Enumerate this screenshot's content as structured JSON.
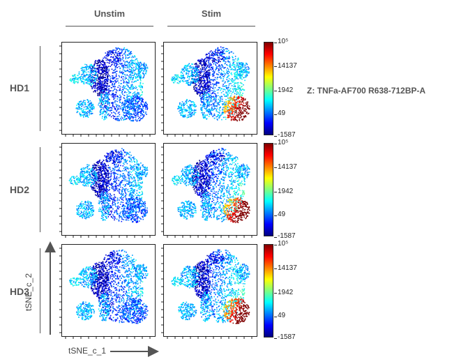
{
  "columns": [
    {
      "label": "Unstim"
    },
    {
      "label": "Stim"
    }
  ],
  "rows": [
    {
      "label": "HD1"
    },
    {
      "label": "HD2"
    },
    {
      "label": "HD3"
    }
  ],
  "colorbar": {
    "tick_labels": [
      "10⁵",
      "14137",
      "1942",
      "49",
      "-1587"
    ],
    "colors": [
      "#00007f",
      "#0000ff",
      "#007fff",
      "#00ffff",
      "#7fff7f",
      "#ffff00",
      "#ff7f00",
      "#ff0000",
      "#7f0000"
    ]
  },
  "z_label": "Z: TNFa-AF700 R638-712BP-A",
  "x_axis_label": "tSNE_c_1",
  "y_axis_label": "tSNE_c_2",
  "chart_data": {
    "type": "scatter",
    "layout": "3x2 grid of tSNE scatter plots colored by marker intensity",
    "columns": [
      "Unstim",
      "Stim"
    ],
    "rows": [
      "HD1",
      "HD2",
      "HD3"
    ],
    "xlabel": "tSNE_c_1",
    "ylabel": "tSNE_c_2",
    "color_scale": {
      "label": "Z: TNFa-AF700 R638-712BP-A",
      "tick_labels": [
        "10⁵",
        "14137",
        "1942",
        "49",
        "-1587"
      ],
      "colormap": "jet"
    },
    "panels": [
      {
        "row": "HD1",
        "column": "Unstim",
        "intensity": "low"
      },
      {
        "row": "HD1",
        "column": "Stim",
        "intensity": "high in lower-right cluster"
      },
      {
        "row": "HD2",
        "column": "Unstim",
        "intensity": "low"
      },
      {
        "row": "HD2",
        "column": "Stim",
        "intensity": "high in lower-right cluster"
      },
      {
        "row": "HD3",
        "column": "Unstim",
        "intensity": "low"
      },
      {
        "row": "HD3",
        "column": "Stim",
        "intensity": "high in lower-right cluster"
      }
    ]
  }
}
